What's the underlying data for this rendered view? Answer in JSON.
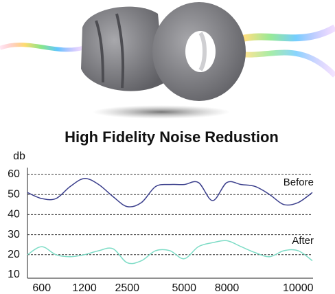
{
  "chart_data": {
    "type": "line",
    "title": "High Fidelity Noise Redustion",
    "y_label": "db",
    "categories": [
      null,
      "600",
      null,
      null,
      "1200",
      null,
      null,
      "2500",
      null,
      null,
      null,
      "5000",
      null,
      null,
      "8000",
      null,
      null,
      null,
      null,
      "10000",
      null
    ],
    "series": [
      {
        "name": "Before",
        "color": "#3b3f8c",
        "values": [
          51,
          48,
          48,
          54,
          58,
          55,
          49,
          44,
          46,
          54,
          55,
          55,
          56,
          47,
          56,
          55,
          54,
          50,
          45,
          46,
          51
        ]
      },
      {
        "name": "After",
        "color": "#7ddcc6",
        "values": [
          20,
          24,
          20,
          19,
          20,
          22,
          23,
          16,
          17,
          22,
          22,
          18,
          24,
          26,
          27,
          24,
          21,
          19,
          22,
          22,
          17
        ]
      }
    ],
    "ylim": [
      10,
      60
    ],
    "yticks": [
      10,
      20,
      30,
      40,
      50,
      60
    ],
    "grid": true
  }
}
